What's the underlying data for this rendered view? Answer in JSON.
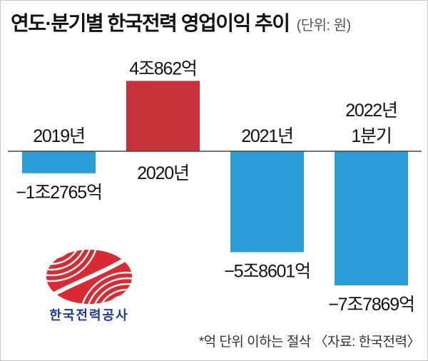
{
  "chart_data": {
    "type": "bar",
    "title": "연도·분기별 한국전력 영업이익 추이",
    "unit": "(단위: 원)",
    "categories": [
      "2019년",
      "2020년",
      "2021년",
      "2022년 1분기"
    ],
    "values": [
      -1276500000000,
      4086200000000,
      -5860100000000,
      -7786900000000
    ],
    "data_labels": [
      "−1조2765억",
      "4조862억",
      "−5조8601억",
      "−7조7869억"
    ],
    "xlabel": "",
    "ylabel": "",
    "grid": false,
    "colors": {
      "positive": "#c8333b",
      "negative": "#2b9ed8"
    }
  },
  "logo": {
    "text": "한국전력공사",
    "icon": "kepco-logo-icon",
    "text_color": "#1c3a8e",
    "mark_color": "#d92a32"
  },
  "footnote": "*억 단위 이하는 절삭 〈자료: 한국전력〉"
}
